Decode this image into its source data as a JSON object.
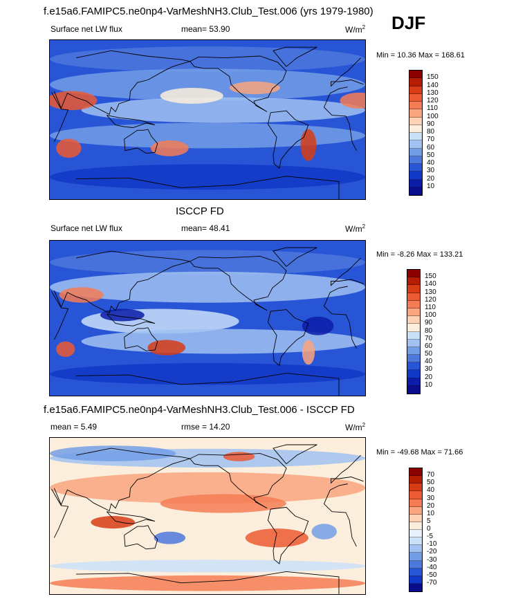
{
  "season": "DJF",
  "panels": [
    {
      "title": "f.e15a6.FAMIPC5.ne0np4-VarMeshNH3.Club_Test.006 (yrs 1979-1980)",
      "left_label": "Surface net LW flux",
      "mid_label": "mean=  53.90",
      "units": "W/m",
      "units_exp": "2",
      "minmax": "Min =  10.36 Max = 168.61",
      "colorbar": {
        "labels": [
          "150",
          "140",
          "130",
          "120",
          "110",
          "100",
          "90",
          "80",
          "70",
          "60",
          "50",
          "40",
          "30",
          "20",
          "10"
        ],
        "colors": [
          "#8c0000",
          "#b41e00",
          "#d73c14",
          "#eb5a32",
          "#f47d55",
          "#f9a57f",
          "#fcd1b4",
          "#fbeedc",
          "#c9e0f9",
          "#a0c1f1",
          "#739ee6",
          "#4d78dc",
          "#2855d6",
          "#1138c6",
          "#0a1ca8",
          "#0a0c8c"
        ]
      },
      "map_scheme": "model"
    },
    {
      "title": "ISCCP FD",
      "left_label": "Surface net LW flux",
      "mid_label": "mean=  48.41",
      "units": "W/m",
      "units_exp": "2",
      "minmax": "Min =  -8.26 Max = 133.21",
      "colorbar": {
        "labels": [
          "150",
          "140",
          "130",
          "120",
          "110",
          "100",
          "90",
          "80",
          "70",
          "60",
          "50",
          "40",
          "30",
          "20",
          "10"
        ],
        "colors": [
          "#8c0000",
          "#b41e00",
          "#d73c14",
          "#eb5a32",
          "#f47d55",
          "#f9a57f",
          "#fcd1b4",
          "#fbeedc",
          "#c9e0f9",
          "#a0c1f1",
          "#739ee6",
          "#4d78dc",
          "#2855d6",
          "#1138c6",
          "#0a1ca8",
          "#0a0c8c"
        ]
      },
      "map_scheme": "obs"
    },
    {
      "title": "f.e15a6.FAMIPC5.ne0np4-VarMeshNH3.Club_Test.006 - ISCCP FD",
      "left_label": "mean =   5.49",
      "mid_label": "rmse =  14.20",
      "units": "W/m",
      "units_exp": "2",
      "minmax": "Min = -49.68 Max =  71.66",
      "colorbar": {
        "labels": [
          "70",
          "50",
          "40",
          "30",
          "20",
          "10",
          "5",
          "0",
          "-5",
          "-10",
          "-20",
          "-30",
          "-40",
          "-50",
          "-70"
        ],
        "colors": [
          "#8c0000",
          "#b41e00",
          "#d73c14",
          "#eb5a32",
          "#f47d55",
          "#f9a57f",
          "#fcd1b4",
          "#fbeedc",
          "#e8f0fb",
          "#c9e0f9",
          "#a0c1f1",
          "#739ee6",
          "#4d78dc",
          "#2855d6",
          "#1138c6",
          "#0a0c8c"
        ]
      },
      "map_scheme": "diff"
    }
  ]
}
